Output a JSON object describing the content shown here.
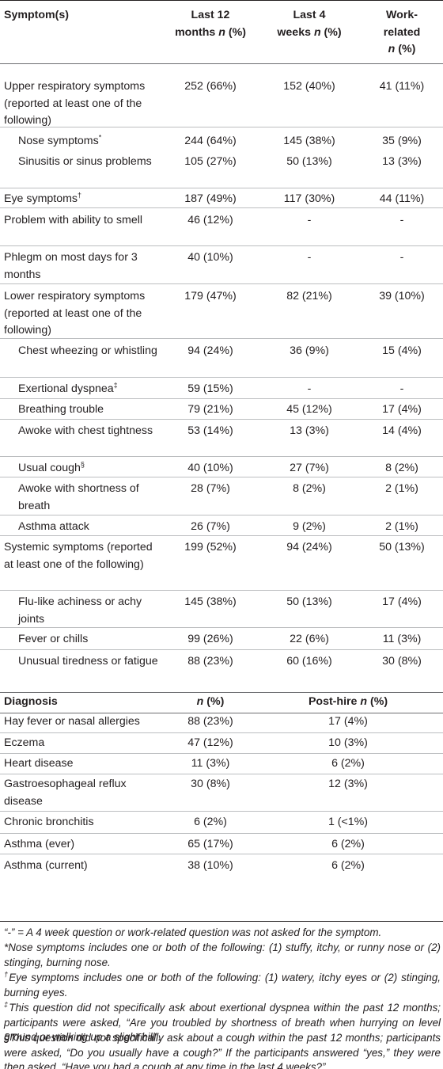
{
  "header": {
    "symptoms": "Symptom(s)",
    "last12_a": "Last 12",
    "last12_b": "months",
    "n_pct": "n",
    "pct": " (%)",
    "last4_a": "Last 4",
    "last4_b": "weeks",
    "work_a": "Work-",
    "work_b": "related"
  },
  "symptom_rows": [
    {
      "label": "Upper respiratory symptoms (reported at least one of the following)",
      "m12": "252 (66%)",
      "w4": "152 (40%)",
      "work": "41 (11%)"
    },
    {
      "label": "Nose symptoms",
      "mark": "*",
      "m12": "244 (64%)",
      "w4": "145 (38%)",
      "work": "35 (9%)"
    },
    {
      "label": "Sinusitis or sinus problems",
      "m12": "105 (27%)",
      "w4": "50 (13%)",
      "work": "13 (3%)"
    },
    {
      "label": "Eye symptoms",
      "mark": "†",
      "m12": "187 (49%)",
      "w4": "117 (30%)",
      "work": "44 (11%)"
    },
    {
      "label": "Problem with ability to smell",
      "m12": "46 (12%)",
      "w4": "-",
      "work": "-"
    },
    {
      "label": "Phlegm on most days for 3 months",
      "m12": "40 (10%)",
      "w4": "-",
      "work": "-"
    },
    {
      "label": "Lower respiratory symptoms (reported at least one of the following)",
      "m12": "179 (47%)",
      "w4": "82 (21%)",
      "work": "39 (10%)"
    },
    {
      "label": "Chest wheezing or whistling",
      "m12": "94 (24%)",
      "w4": "36 (9%)",
      "work": "15 (4%)"
    },
    {
      "label": "Exertional dyspnea",
      "mark": "‡",
      "m12": "59 (15%)",
      "w4": "-",
      "work": "-"
    },
    {
      "label": "Breathing trouble",
      "m12": "79 (21%)",
      "w4": "45 (12%)",
      "work": "17 (4%)"
    },
    {
      "label": "Awoke with chest tightness",
      "m12": "53 (14%)",
      "w4": "13 (3%)",
      "work": "14 (4%)"
    },
    {
      "label": "Usual cough",
      "mark": "§",
      "m12": "40 (10%)",
      "w4": "27 (7%)",
      "work": "8 (2%)"
    },
    {
      "label": "Awoke with shortness of breath",
      "m12": "28 (7%)",
      "w4": "8 (2%)",
      "work": "2 (1%)"
    },
    {
      "label": "Asthma attack",
      "m12": "26 (7%)",
      "w4": "9 (2%)",
      "work": "2 (1%)"
    },
    {
      "label": "Systemic symptoms (reported at least one of the following)",
      "m12": "199 (52%)",
      "w4": "94 (24%)",
      "work": "50 (13%)"
    },
    {
      "label": "Flu-like achiness or achy joints",
      "m12": "145 (38%)",
      "w4": "50 (13%)",
      "work": "17 (4%)"
    },
    {
      "label": "Fever or chills",
      "m12": "99 (26%)",
      "w4": "22 (6%)",
      "work": "11 (3%)"
    },
    {
      "label": "Unusual tiredness or fatigue",
      "m12": "88 (23%)",
      "w4": "60 (16%)",
      "work": "30 (8%)"
    }
  ],
  "diag_header": {
    "diagnosis": "Diagnosis",
    "n": "n",
    "pct": " (%)",
    "posthire": "Post-hire "
  },
  "diag_rows": [
    {
      "label": "Hay fever or nasal allergies",
      "n": "88 (23%)",
      "post": "17 (4%)"
    },
    {
      "label": "Eczema",
      "n": "47 (12%)",
      "post": "10 (3%)"
    },
    {
      "label": "Heart disease",
      "n": "11 (3%)",
      "post": "6 (2%)"
    },
    {
      "label": "Gastroesophageal reflux disease",
      "n": "30 (8%)",
      "post": "12 (3%)"
    },
    {
      "label": "Chronic bronchitis",
      "n": "6 (2%)",
      "post": "1 (<1%)"
    },
    {
      "label": "Asthma (ever)",
      "n": "65 (17%)",
      "post": "6 (2%)"
    },
    {
      "label": "Asthma (current)",
      "n": "38 (10%)",
      "post": "6 (2%)"
    }
  ],
  "footnotes": {
    "dash": "“-” = A 4 week question or work-related question was not asked for the symptom.",
    "nose": "*Nose symptoms includes one or both of the following: (1) stuffy, itchy, or runny nose or (2) stinging, burning nose.",
    "eye": "Eye symptoms includes one or both of the following: (1) watery, itchy eyes or (2) stinging, burning eyes.",
    "dagger": "†",
    "ddagger": "‡",
    "dyspnea": "This question did not specifically ask about exertional dyspnea within the past 12 months; participants were asked, “Are you troubled by shortness of breath when hurrying on level ground or walking up a slight hill”.",
    "cough": "§This question did not specifically ask about a cough within the past 12 months; participants were asked, “Do you usually have a cough?” If the participants answered “yes,” they were then asked, “Have you had a cough at any time in the last 4 weeks?”"
  }
}
